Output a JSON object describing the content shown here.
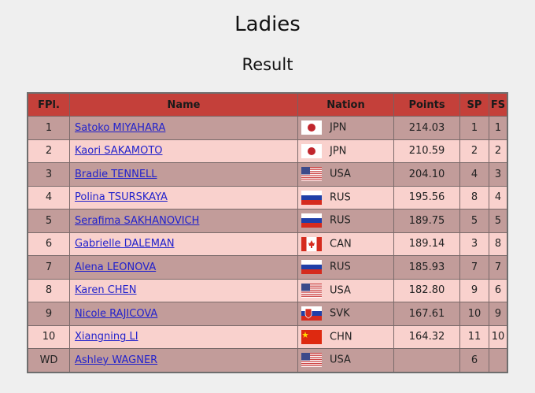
{
  "title": "Ladies",
  "subtitle": "Result",
  "headers": {
    "fpl": "FPl.",
    "name": "Name",
    "nation": "Nation",
    "points": "Points",
    "sp": "SP",
    "fs": "FS"
  },
  "colors": {
    "header": "#c4403a",
    "row_odd": "#c29c9a",
    "row_even": "#f9d1cd",
    "link": "#2222cc"
  },
  "rows": [
    {
      "fpl": "1",
      "name": "Satoko MIYAHARA",
      "flag": "jpn-flag-icon",
      "nation": "JPN",
      "points": "214.03",
      "sp": "1",
      "fs": "1"
    },
    {
      "fpl": "2",
      "name": "Kaori SAKAMOTO",
      "flag": "jpn-flag-icon",
      "nation": "JPN",
      "points": "210.59",
      "sp": "2",
      "fs": "2"
    },
    {
      "fpl": "3",
      "name": "Bradie TENNELL",
      "flag": "usa-flag-icon",
      "nation": "USA",
      "points": "204.10",
      "sp": "4",
      "fs": "3"
    },
    {
      "fpl": "4",
      "name": "Polina TSURSKAYA",
      "flag": "rus-flag-icon",
      "nation": "RUS",
      "points": "195.56",
      "sp": "8",
      "fs": "4"
    },
    {
      "fpl": "5",
      "name": "Serafima SAKHANOVICH",
      "flag": "rus-flag-icon",
      "nation": "RUS",
      "points": "189.75",
      "sp": "5",
      "fs": "5"
    },
    {
      "fpl": "6",
      "name": "Gabrielle DALEMAN",
      "flag": "can-flag-icon",
      "nation": "CAN",
      "points": "189.14",
      "sp": "3",
      "fs": "8"
    },
    {
      "fpl": "7",
      "name": "Alena LEONOVA",
      "flag": "rus-flag-icon",
      "nation": "RUS",
      "points": "185.93",
      "sp": "7",
      "fs": "7"
    },
    {
      "fpl": "8",
      "name": "Karen CHEN",
      "flag": "usa-flag-icon",
      "nation": "USA",
      "points": "182.80",
      "sp": "9",
      "fs": "6"
    },
    {
      "fpl": "9",
      "name": "Nicole RAJICOVA",
      "flag": "svk-flag-icon",
      "nation": "SVK",
      "points": "167.61",
      "sp": "10",
      "fs": "9"
    },
    {
      "fpl": "10",
      "name": "Xiangning LI",
      "flag": "chn-flag-icon",
      "nation": "CHN",
      "points": "164.32",
      "sp": "11",
      "fs": "10"
    },
    {
      "fpl": "WD",
      "name": "Ashley WAGNER",
      "flag": "usa-flag-icon",
      "nation": "USA",
      "points": "",
      "sp": "6",
      "fs": ""
    }
  ]
}
